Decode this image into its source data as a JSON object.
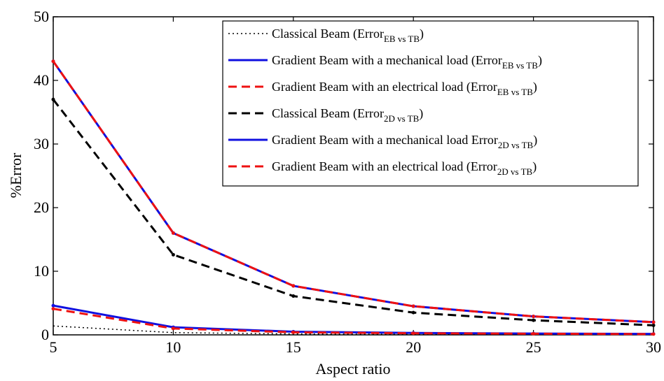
{
  "chart_data": {
    "type": "line",
    "title": "",
    "xlabel": "Aspect ratio",
    "ylabel": "%Error",
    "xlim": [
      5,
      30
    ],
    "ylim": [
      0,
      50
    ],
    "xticks": [
      5,
      10,
      15,
      20,
      25,
      30
    ],
    "yticks": [
      0,
      10,
      20,
      30,
      40,
      50
    ],
    "grid": false,
    "legend_position": "top-right",
    "x": [
      5,
      10,
      15,
      20,
      25,
      30
    ],
    "series": [
      {
        "name": "Classical Beam (Error",
        "sub": "EB vs TB",
        "tail": ")",
        "color": "#000000",
        "style": "dotted",
        "values": [
          1.4,
          0.35,
          0.15,
          0.08,
          0.05,
          0.04
        ]
      },
      {
        "name": "Gradient Beam with a mechanical load  (Error",
        "sub": "EB vs TB",
        "tail": ")",
        "color": "#1010e0",
        "style": "solid",
        "values": [
          4.6,
          1.2,
          0.5,
          0.3,
          0.2,
          0.15
        ]
      },
      {
        "name": "Gradient Beam with an electrical load  (Error",
        "sub": "EB vs TB",
        "tail": ")",
        "color": "#ee1111",
        "style": "dashed",
        "values": [
          4.1,
          1.0,
          0.4,
          0.25,
          0.18,
          0.12
        ]
      },
      {
        "name": "Classical Beam (Error",
        "sub": "2D vs TB",
        "tail": ")",
        "color": "#000000",
        "style": "dashed",
        "values": [
          37,
          12.6,
          6.1,
          3.5,
          2.3,
          1.5
        ]
      },
      {
        "name": "Gradient Beam with a mechanical load  Error",
        "sub": "2D vs TB",
        "tail": ")",
        "color": "#1010e0",
        "style": "solid",
        "values": [
          43,
          16,
          7.7,
          4.5,
          2.9,
          2.0
        ]
      },
      {
        "name": "Gradient Beam with an electrical load  (Error",
        "sub": "2D vs TB",
        "tail": ")",
        "color": "#ee1111",
        "style": "dashed",
        "values": [
          43,
          16,
          7.7,
          4.5,
          2.9,
          2.0
        ]
      }
    ]
  }
}
